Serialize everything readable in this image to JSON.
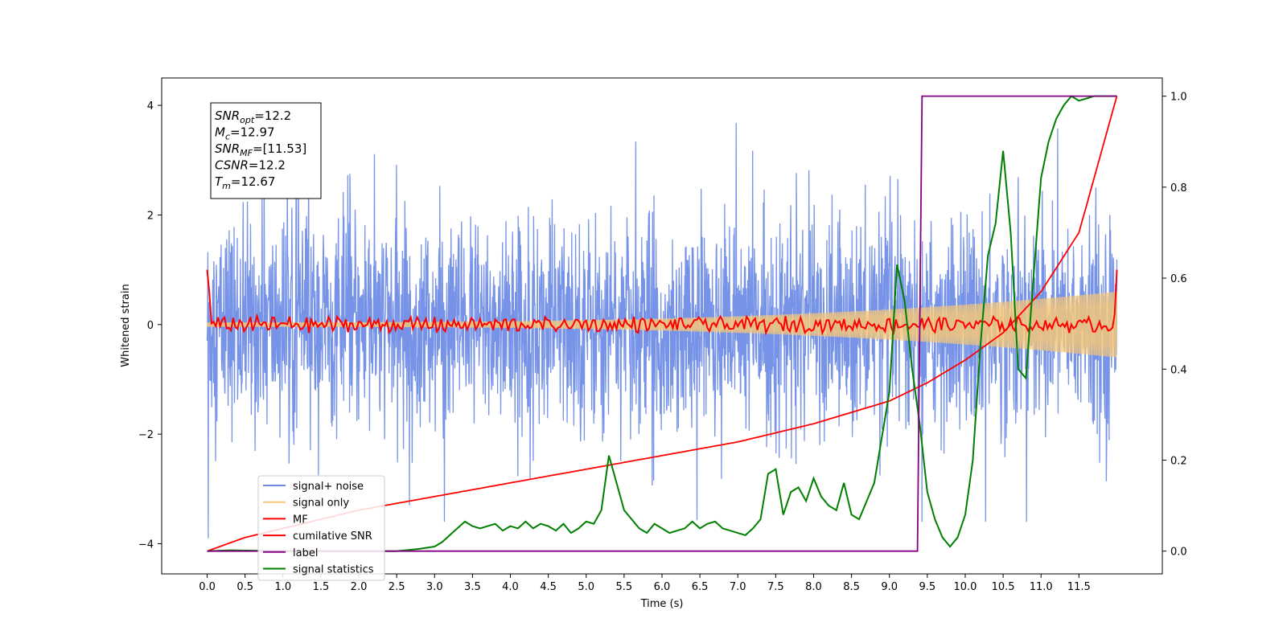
{
  "chart_data": {
    "type": "line",
    "xlabel": "Time (s)",
    "ylabel": "Whitened strain",
    "xlim": [
      -0.6,
      12.6
    ],
    "ylim": [
      -4.55,
      4.5
    ],
    "y2lim": [
      -0.05,
      1.04
    ],
    "xticks": [
      "0.0",
      "0.5",
      "1.0",
      "1.5",
      "2.0",
      "2.5",
      "3.0",
      "3.5",
      "4.0",
      "4.5",
      "5.0",
      "5.5",
      "6.0",
      "6.5",
      "7.0",
      "7.5",
      "8.0",
      "8.5",
      "9.0",
      "9.5",
      "10.0",
      "10.5",
      "11.0",
      "11.5"
    ],
    "yticks": [
      "−4",
      "−2",
      "0",
      "2",
      "4"
    ],
    "y2ticks": [
      "0.0",
      "0.2",
      "0.4",
      "0.6",
      "0.8",
      "1.0"
    ],
    "legend_position": "lower-left",
    "legend": [
      "signal+ noise",
      "signal only",
      "MF",
      "cumilative SNR",
      "label",
      "signal statistics"
    ],
    "info_box": {
      "lines": [
        {
          "base": "SNR",
          "sub": "opt",
          "value": "=12.2"
        },
        {
          "base": "M",
          "sub": "c",
          "value": "=12.97"
        },
        {
          "base": "SNR",
          "sub": "MF",
          "value": "=[11.53]"
        },
        {
          "base": "CSNR",
          "sub": "",
          "value": "=12.2"
        },
        {
          "base": "T",
          "sub": "m",
          "value": "=12.67"
        }
      ]
    },
    "series": [
      {
        "name": "signal+ noise",
        "axis": "left",
        "color": "#6f8de6",
        "note_range": [
          -3.6,
          4.1
        ],
        "x_range": [
          0.0,
          12.0
        ]
      },
      {
        "name": "signal only",
        "axis": "left",
        "color": "#f5c77a",
        "amplitude_start": 0.04,
        "amplitude_end": 0.6,
        "x_range": [
          0.0,
          12.0
        ]
      },
      {
        "name": "MF",
        "axis": "left",
        "color": "#ff0000",
        "x_range": [
          0.0,
          12.0
        ],
        "start": 1.0,
        "end": 1.0,
        "band": 0.12
      },
      {
        "name": "cumilative SNR",
        "axis": "right",
        "color": "#ff0000",
        "x": [
          0.0,
          0.5,
          1.0,
          1.5,
          2.0,
          2.5,
          3.0,
          3.5,
          4.0,
          4.5,
          5.0,
          5.5,
          6.0,
          6.5,
          7.0,
          7.5,
          8.0,
          8.5,
          9.0,
          9.5,
          10.0,
          10.5,
          11.0,
          11.5,
          12.0
        ],
        "y": [
          0.0,
          0.03,
          0.05,
          0.07,
          0.09,
          0.105,
          0.12,
          0.135,
          0.15,
          0.165,
          0.18,
          0.195,
          0.21,
          0.225,
          0.24,
          0.26,
          0.28,
          0.305,
          0.33,
          0.37,
          0.42,
          0.48,
          0.57,
          0.7,
          1.0
        ]
      },
      {
        "name": "label",
        "axis": "right",
        "color": "#800080",
        "x": [
          0.0,
          9.37,
          9.43,
          12.0
        ],
        "y": [
          0.0,
          0.0,
          1.0,
          1.0
        ]
      },
      {
        "name": "signal statistics",
        "axis": "right",
        "color": "#008000",
        "x": [
          0.0,
          0.3,
          1.0,
          2.0,
          2.5,
          2.8,
          3.0,
          3.1,
          3.2,
          3.3,
          3.4,
          3.5,
          3.6,
          3.7,
          3.8,
          3.9,
          4.0,
          4.1,
          4.2,
          4.3,
          4.4,
          4.5,
          4.6,
          4.7,
          4.8,
          4.9,
          5.0,
          5.1,
          5.2,
          5.3,
          5.4,
          5.5,
          5.6,
          5.7,
          5.8,
          5.9,
          6.0,
          6.1,
          6.2,
          6.3,
          6.4,
          6.5,
          6.6,
          6.7,
          6.8,
          6.9,
          7.0,
          7.1,
          7.2,
          7.3,
          7.4,
          7.5,
          7.6,
          7.7,
          7.8,
          7.9,
          8.0,
          8.1,
          8.2,
          8.3,
          8.4,
          8.5,
          8.6,
          8.7,
          8.8,
          8.9,
          9.0,
          9.1,
          9.2,
          9.3,
          9.4,
          9.5,
          9.6,
          9.7,
          9.8,
          9.9,
          10.0,
          10.1,
          10.2,
          10.3,
          10.4,
          10.5,
          10.6,
          10.7,
          10.8,
          10.9,
          11.0,
          11.1,
          11.2,
          11.3,
          11.4,
          11.5,
          11.6,
          11.7,
          11.8,
          11.9,
          12.0
        ],
        "y": [
          0.0,
          0.002,
          0.0,
          0.0,
          0.0,
          0.005,
          0.01,
          0.02,
          0.035,
          0.05,
          0.065,
          0.055,
          0.05,
          0.055,
          0.06,
          0.045,
          0.055,
          0.05,
          0.065,
          0.05,
          0.06,
          0.055,
          0.045,
          0.06,
          0.04,
          0.05,
          0.065,
          0.06,
          0.09,
          0.21,
          0.15,
          0.09,
          0.07,
          0.05,
          0.04,
          0.06,
          0.05,
          0.04,
          0.045,
          0.05,
          0.065,
          0.05,
          0.06,
          0.065,
          0.05,
          0.045,
          0.04,
          0.035,
          0.05,
          0.07,
          0.17,
          0.18,
          0.08,
          0.13,
          0.14,
          0.11,
          0.16,
          0.12,
          0.1,
          0.09,
          0.15,
          0.08,
          0.07,
          0.11,
          0.15,
          0.25,
          0.35,
          0.63,
          0.55,
          0.4,
          0.28,
          0.13,
          0.07,
          0.03,
          0.01,
          0.03,
          0.08,
          0.2,
          0.45,
          0.65,
          0.72,
          0.88,
          0.7,
          0.4,
          0.38,
          0.6,
          0.82,
          0.9,
          0.95,
          0.98,
          1.0,
          0.99,
          0.995,
          1.0,
          1.0,
          1.0,
          1.0
        ]
      }
    ]
  }
}
